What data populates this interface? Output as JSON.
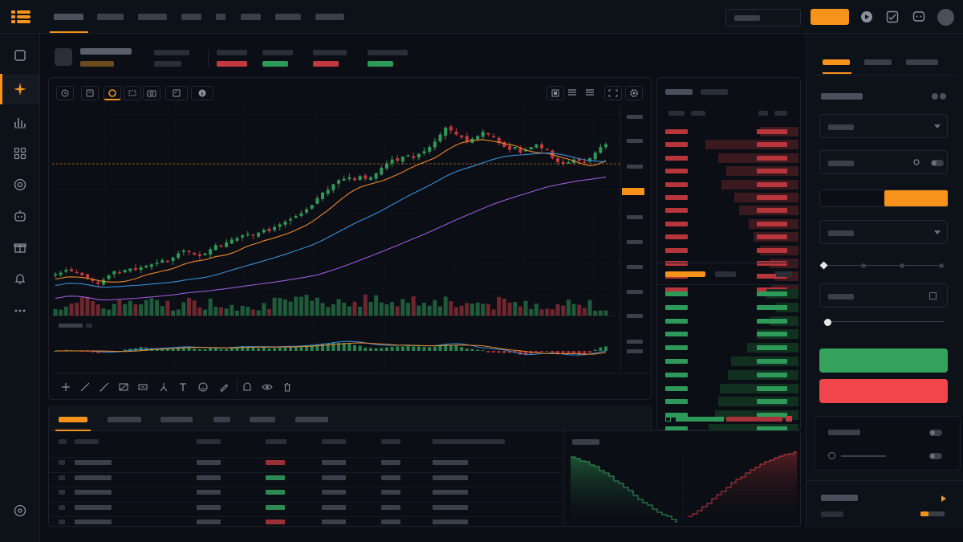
{
  "theme": {
    "accent": "#f7931a",
    "up": "#2e9a5a",
    "down": "#c23a3f",
    "buy": "#34a25c",
    "sell": "#f0454a",
    "ma_fast": "#f0882a",
    "ma_mid": "#3a8fd8",
    "ma_slow": "#9b59d9"
  },
  "icons": {
    "logo": "logo-icon",
    "topbar": [
      "play-circle-icon",
      "checklist-icon",
      "chat-icon"
    ],
    "sidebar": [
      "square-icon",
      "sparkle-icon",
      "bar-chart-icon",
      "grid-icon",
      "target-icon",
      "bot-icon",
      "gift-icon",
      "bell-icon",
      "more-icon",
      "settings-icon"
    ],
    "chart_toolbar": [
      "clock-icon",
      "candles-icon",
      "indicator-icon",
      "compare-icon",
      "camera-icon",
      "template-icon",
      "info-icon"
    ],
    "chart_toolbar_right": [
      "layout-icon",
      "list-icon",
      "menu-icon",
      "fullscreen-icon",
      "gear-icon"
    ],
    "drawing_tools": [
      "crosshair-icon",
      "trendline-icon",
      "ray-icon",
      "rectangle-icon",
      "measure-icon",
      "fork-icon",
      "text-icon",
      "emoji-icon",
      "pencil-icon",
      "magnet-icon",
      "eye-icon",
      "trash-icon"
    ]
  },
  "chart_data": {
    "type": "candlestick",
    "series_colors": {
      "up": "#2e9a5a",
      "down": "#c23a3f"
    },
    "closes": [
      0.32,
      0.33,
      0.35,
      0.34,
      0.33,
      0.31,
      0.29,
      0.27,
      0.25,
      0.28,
      0.31,
      0.34,
      0.33,
      0.35,
      0.36,
      0.35,
      0.37,
      0.38,
      0.39,
      0.4,
      0.42,
      0.41,
      0.44,
      0.47,
      0.49,
      0.48,
      0.46,
      0.45,
      0.47,
      0.5,
      0.53,
      0.52,
      0.55,
      0.57,
      0.58,
      0.6,
      0.61,
      0.6,
      0.62,
      0.64,
      0.63,
      0.66,
      0.68,
      0.7,
      0.72,
      0.74,
      0.76,
      0.79,
      0.82,
      0.87,
      0.91,
      0.93,
      0.97,
      1.0,
      1.01,
      1.02,
      1.0,
      1.03,
      1.01,
      1.02,
      1.05,
      1.09,
      1.12,
      1.15,
      1.14,
      1.17,
      1.18,
      1.16,
      1.19,
      1.21,
      1.24,
      1.28,
      1.33,
      1.38,
      1.36,
      1.33,
      1.31,
      1.28,
      1.3,
      1.32,
      1.35,
      1.33,
      1.31,
      1.27,
      1.24,
      1.22,
      1.24,
      1.2,
      1.22,
      1.24,
      1.26,
      1.23,
      1.22,
      1.16,
      1.13,
      1.12,
      1.13,
      1.15,
      1.14,
      1.13,
      1.16,
      1.2,
      1.24,
      1.26
    ]
  }
}
